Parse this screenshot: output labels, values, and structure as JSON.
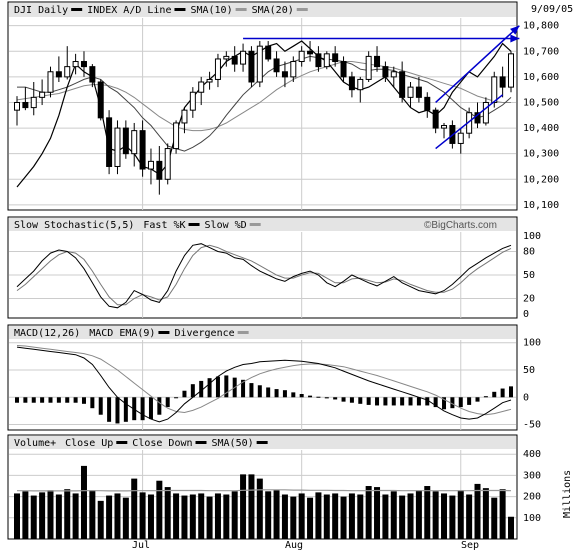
{
  "date_label": "9/09/05",
  "watermark": "©BigCharts.com",
  "months": [
    "Jul",
    "Aug",
    "Sep"
  ],
  "colors": {
    "arrow": "#0000cc",
    "trend": "#0000cc",
    "panel_border": "#000000",
    "header_bg": "#e4e4e4",
    "grid": "#cccccc"
  },
  "chart_data": [
    {
      "type": "candlestick",
      "header": {
        "legend": [
          "DJI Daily",
          "INDEX A/D Line",
          "SMA(10)",
          "SMA(20)"
        ]
      },
      "y_ticks": [
        "10,800",
        "10,700",
        "10,600",
        "10,500",
        "10,400",
        "10,300",
        "10,200",
        "10,100"
      ],
      "ylim": [
        10080,
        10830
      ],
      "ohlc": [
        [
          10470,
          10525,
          10410,
          10500
        ],
        [
          10500,
          10560,
          10470,
          10480
        ],
        [
          10480,
          10580,
          10450,
          10520
        ],
        [
          10520,
          10590,
          10490,
          10540
        ],
        [
          10540,
          10640,
          10520,
          10620
        ],
        [
          10620,
          10680,
          10580,
          10600
        ],
        [
          10600,
          10720,
          10590,
          10640
        ],
        [
          10640,
          10690,
          10610,
          10660
        ],
        [
          10660,
          10700,
          10600,
          10640
        ],
        [
          10640,
          10650,
          10560,
          10580
        ],
        [
          10580,
          10590,
          10430,
          10440
        ],
        [
          10440,
          10470,
          10220,
          10250
        ],
        [
          10250,
          10430,
          10220,
          10400
        ],
        [
          10400,
          10430,
          10280,
          10300
        ],
        [
          10300,
          10420,
          10250,
          10390
        ],
        [
          10390,
          10430,
          10210,
          10240
        ],
        [
          10240,
          10320,
          10180,
          10270
        ],
        [
          10270,
          10330,
          10140,
          10200
        ],
        [
          10200,
          10340,
          10180,
          10320
        ],
        [
          10320,
          10430,
          10300,
          10420
        ],
        [
          10420,
          10480,
          10380,
          10470
        ],
        [
          10470,
          10560,
          10440,
          10540
        ],
        [
          10540,
          10600,
          10490,
          10580
        ],
        [
          10580,
          10620,
          10550,
          10590
        ],
        [
          10590,
          10690,
          10560,
          10670
        ],
        [
          10670,
          10700,
          10640,
          10680
        ],
        [
          10680,
          10720,
          10620,
          10650
        ],
        [
          10650,
          10730,
          10620,
          10700
        ],
        [
          10700,
          10720,
          10560,
          10580
        ],
        [
          10580,
          10740,
          10560,
          10720
        ],
        [
          10720,
          10740,
          10660,
          10670
        ],
        [
          10670,
          10700,
          10600,
          10620
        ],
        [
          10620,
          10660,
          10560,
          10600
        ],
        [
          10600,
          10680,
          10580,
          10660
        ],
        [
          10660,
          10720,
          10640,
          10700
        ],
        [
          10700,
          10740,
          10660,
          10690
        ],
        [
          10690,
          10720,
          10620,
          10640
        ],
        [
          10640,
          10700,
          10630,
          10690
        ],
        [
          10690,
          10720,
          10640,
          10660
        ],
        [
          10660,
          10680,
          10580,
          10600
        ],
        [
          10600,
          10620,
          10520,
          10550
        ],
        [
          10550,
          10600,
          10500,
          10590
        ],
        [
          10590,
          10700,
          10580,
          10680
        ],
        [
          10680,
          10720,
          10620,
          10640
        ],
        [
          10640,
          10660,
          10580,
          10600
        ],
        [
          10600,
          10640,
          10560,
          10620
        ],
        [
          10620,
          10660,
          10500,
          10520
        ],
        [
          10520,
          10580,
          10480,
          10560
        ],
        [
          10560,
          10600,
          10500,
          10520
        ],
        [
          10520,
          10540,
          10440,
          10470
        ],
        [
          10470,
          10480,
          10380,
          10400
        ],
        [
          10400,
          10420,
          10360,
          10410
        ],
        [
          10410,
          10430,
          10320,
          10340
        ],
        [
          10340,
          10400,
          10300,
          10380
        ],
        [
          10380,
          10480,
          10360,
          10460
        ],
        [
          10460,
          10500,
          10400,
          10420
        ],
        [
          10420,
          10520,
          10410,
          10500
        ],
        [
          10500,
          10620,
          10480,
          10600
        ],
        [
          10600,
          10640,
          10520,
          10560
        ],
        [
          10560,
          10700,
          10540,
          10690
        ]
      ],
      "ad_line": [
        10170,
        10210,
        10250,
        10300,
        10360,
        10450,
        10560,
        10650,
        10620,
        10600,
        10480,
        10320,
        10310,
        10330,
        10300,
        10250,
        10240,
        10220,
        10260,
        10380,
        10480,
        10520,
        10560,
        10590,
        10620,
        10660,
        10680,
        10700,
        10680,
        10700,
        10720,
        10730,
        10700,
        10720,
        10740,
        10710,
        10680,
        10660,
        10620,
        10580,
        10560,
        10550,
        10560,
        10580,
        10600,
        10560,
        10520,
        10480,
        10460,
        10470,
        10450,
        10480,
        10540,
        10580,
        10620,
        10600,
        10640,
        10680,
        10730,
        10700
      ],
      "sma10": [
        10560,
        10560,
        10550,
        10540,
        10540,
        10550,
        10560,
        10575,
        10590,
        10600,
        10590,
        10560,
        10540,
        10510,
        10480,
        10440,
        10410,
        10370,
        10330,
        10320,
        10310,
        10325,
        10345,
        10370,
        10405,
        10450,
        10490,
        10530,
        10560,
        10590,
        10620,
        10640,
        10650,
        10660,
        10670,
        10680,
        10675,
        10670,
        10665,
        10660,
        10650,
        10630,
        10625,
        10630,
        10630,
        10625,
        10610,
        10600,
        10590,
        10580,
        10560,
        10540,
        10510,
        10480,
        10460,
        10440,
        10450,
        10470,
        10490,
        10520
      ],
      "sma20": [
        10510,
        10515,
        10520,
        10525,
        10530,
        10535,
        10545,
        10555,
        10565,
        10570,
        10570,
        10565,
        10555,
        10540,
        10520,
        10495,
        10470,
        10445,
        10425,
        10405,
        10395,
        10390,
        10390,
        10395,
        10405,
        10420,
        10440,
        10460,
        10480,
        10500,
        10525,
        10550,
        10570,
        10590,
        10605,
        10620,
        10630,
        10640,
        10650,
        10660,
        10660,
        10655,
        10650,
        10645,
        10640,
        10635,
        10625,
        10615,
        10605,
        10595,
        10585,
        10575,
        10565,
        10555,
        10540,
        10525,
        10515,
        10505,
        10500,
        10500
      ],
      "trendline_top": [
        [
          27,
          10750
        ],
        [
          52,
          10750
        ]
      ],
      "channel_bottom": [
        [
          50,
          10320
        ],
        [
          58,
          10530
        ]
      ],
      "channel_top_arrow": [
        [
          50,
          10500
        ],
        [
          60,
          10800
        ]
      ],
      "resistance_arrow": [
        [
          27,
          10750
        ],
        [
          60,
          10750
        ]
      ]
    },
    {
      "type": "line",
      "header": {
        "legend": [
          "Slow Stochastic(5,5)",
          "Fast %K",
          "Slow %D"
        ]
      },
      "y_ticks": [
        "100",
        "80",
        "50",
        "20",
        "0"
      ],
      "ylim": [
        -5,
        105
      ],
      "k": [
        35,
        45,
        55,
        68,
        78,
        82,
        80,
        72,
        58,
        40,
        22,
        10,
        8,
        15,
        30,
        25,
        18,
        15,
        30,
        55,
        75,
        88,
        90,
        85,
        80,
        78,
        72,
        70,
        62,
        55,
        50,
        45,
        42,
        48,
        52,
        55,
        50,
        40,
        35,
        42,
        50,
        45,
        40,
        36,
        42,
        48,
        40,
        35,
        30,
        28,
        26,
        30,
        38,
        48,
        58,
        65,
        72,
        78,
        84,
        88
      ],
      "d": [
        30,
        38,
        48,
        58,
        68,
        76,
        80,
        78,
        70,
        55,
        38,
        22,
        12,
        12,
        20,
        25,
        22,
        18,
        22,
        38,
        58,
        75,
        85,
        88,
        85,
        80,
        76,
        72,
        68,
        62,
        56,
        50,
        46,
        46,
        50,
        53,
        52,
        46,
        40,
        40,
        45,
        46,
        43,
        40,
        41,
        45,
        43,
        38,
        34,
        30,
        28,
        28,
        32,
        40,
        50,
        58,
        65,
        72,
        79,
        84
      ]
    },
    {
      "type": "line",
      "header": {
        "legend": [
          "MACD(12,26)",
          "MACD EMA(9)",
          "Divergence"
        ]
      },
      "y_ticks": [
        "100",
        "50",
        "0",
        "-50"
      ],
      "ylim": [
        -60,
        105
      ],
      "macd": [
        92,
        90,
        88,
        86,
        84,
        82,
        80,
        78,
        72,
        60,
        40,
        18,
        0,
        -12,
        -22,
        -32,
        -40,
        -45,
        -40,
        -28,
        -12,
        0,
        12,
        25,
        38,
        48,
        55,
        60,
        62,
        65,
        66,
        67,
        68,
        67,
        66,
        64,
        62,
        58,
        54,
        48,
        42,
        36,
        30,
        25,
        20,
        15,
        10,
        5,
        0,
        -5,
        -15,
        -25,
        -32,
        -38,
        -40,
        -38,
        -30,
        -20,
        -10,
        -5
      ],
      "macd_ema": [
        95,
        94,
        92,
        90,
        88,
        86,
        84,
        82,
        80,
        76,
        70,
        60,
        50,
        38,
        26,
        14,
        2,
        -10,
        -20,
        -26,
        -28,
        -24,
        -18,
        -10,
        -2,
        8,
        18,
        28,
        36,
        43,
        48,
        52,
        55,
        58,
        60,
        61,
        61,
        60,
        58,
        56,
        52,
        48,
        44,
        40,
        35,
        30,
        25,
        20,
        15,
        10,
        4,
        -4,
        -12,
        -20,
        -26,
        -30,
        -32,
        -30,
        -26,
        -22
      ],
      "divergence": [
        -10,
        -10,
        -10,
        -10,
        -10,
        -10,
        -10,
        -10,
        -12,
        -20,
        -32,
        -45,
        -48,
        -45,
        -42,
        -42,
        -40,
        -32,
        -18,
        0,
        12,
        24,
        30,
        35,
        38,
        40,
        36,
        32,
        26,
        22,
        18,
        15,
        13,
        9,
        6,
        3,
        1,
        -2,
        -4,
        -8,
        -10,
        -12,
        -14,
        -15,
        -15,
        -15,
        -15,
        -15,
        -15,
        -15,
        -18,
        -22,
        -20,
        -18,
        -14,
        -8,
        2,
        10,
        16,
        20
      ]
    },
    {
      "type": "bar",
      "header": {
        "legend": [
          "Volume+",
          "Close Up",
          "Close Down",
          "SMA(50)"
        ]
      },
      "y_ticks": [
        "400",
        "300",
        "200",
        "100"
      ],
      "ylabel": "Millions",
      "ylim": [
        0,
        420
      ],
      "volume": [
        215,
        225,
        205,
        220,
        230,
        210,
        235,
        215,
        345,
        230,
        180,
        205,
        215,
        195,
        285,
        220,
        210,
        275,
        245,
        215,
        205,
        210,
        215,
        200,
        215,
        210,
        225,
        305,
        305,
        285,
        225,
        230,
        210,
        200,
        215,
        195,
        220,
        210,
        215,
        200,
        215,
        210,
        250,
        245,
        210,
        225,
        205,
        215,
        230,
        250,
        225,
        215,
        205,
        230,
        210,
        260,
        240,
        195,
        235,
        105
      ],
      "sma50": [
        228,
        228,
        227,
        227,
        227,
        227,
        227,
        227,
        228,
        228,
        228,
        227,
        227,
        227,
        228,
        228,
        228,
        228,
        229,
        229,
        229,
        229,
        229,
        228,
        228,
        228,
        228,
        230,
        231,
        232,
        232,
        232,
        232,
        231,
        231,
        230,
        230,
        230,
        229,
        229,
        228,
        228,
        228,
        229,
        229,
        229,
        228,
        228,
        228,
        228,
        228,
        228,
        228,
        228,
        228,
        229,
        229,
        229,
        229,
        228
      ]
    }
  ]
}
